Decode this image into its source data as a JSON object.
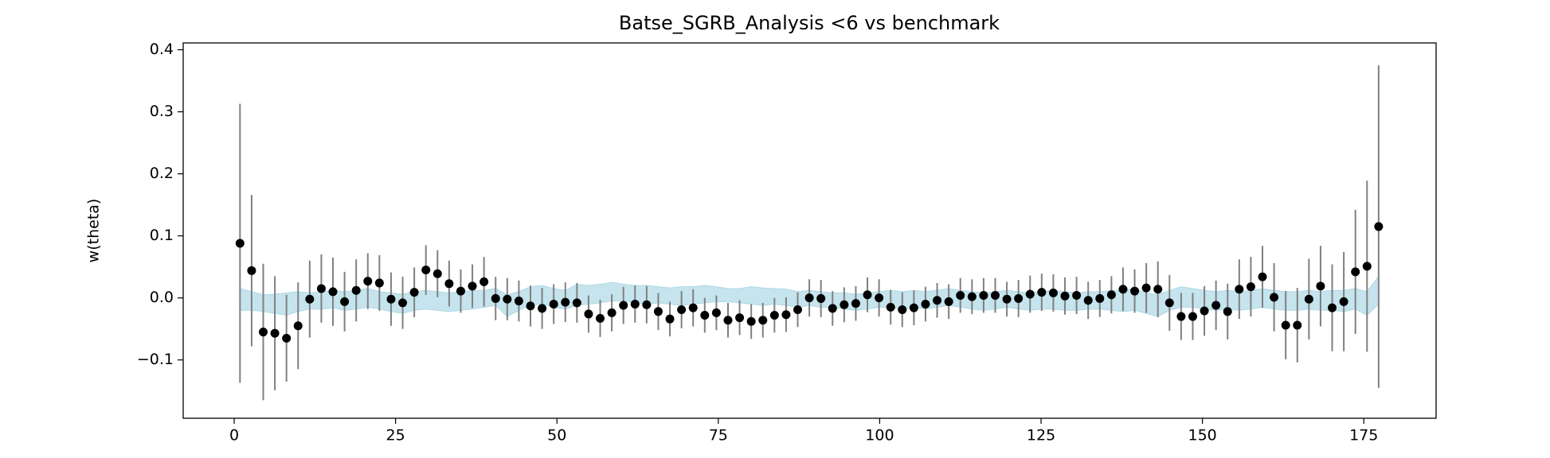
{
  "chart_data": {
    "type": "errorbar",
    "title": "Batse_SGRB_Analysis <6 vs benchmark",
    "ylabel": "w(theta)",
    "x": [
      0.9,
      2.7,
      4.5,
      6.3,
      8.1,
      9.9,
      11.7,
      13.5,
      15.3,
      17.1,
      18.9,
      20.7,
      22.5,
      24.3,
      26.1,
      27.9,
      29.7,
      31.5,
      33.3,
      35.1,
      36.9,
      38.7,
      40.5,
      42.3,
      44.1,
      45.9,
      47.7,
      49.5,
      51.3,
      53.1,
      54.9,
      56.7,
      58.5,
      60.3,
      62.1,
      63.9,
      65.7,
      67.5,
      69.3,
      71.1,
      72.9,
      74.7,
      76.5,
      78.3,
      80.1,
      81.9,
      83.7,
      85.5,
      87.3,
      89.1,
      90.9,
      92.7,
      94.5,
      96.3,
      98.1,
      99.9,
      101.7,
      103.5,
      105.3,
      107.1,
      108.9,
      110.7,
      112.5,
      114.3,
      116.1,
      117.9,
      119.7,
      121.5,
      123.3,
      125.1,
      126.9,
      128.7,
      130.5,
      132.3,
      134.1,
      135.9,
      137.7,
      139.5,
      141.3,
      143.1,
      144.9,
      146.7,
      148.5,
      150.3,
      152.1,
      153.9,
      155.7,
      157.5,
      159.3,
      161.1,
      162.9,
      164.7,
      166.5,
      168.3,
      170.1,
      171.9,
      173.7,
      175.5,
      177.3
    ],
    "values": [
      0.088,
      0.044,
      -0.055,
      -0.057,
      -0.065,
      -0.045,
      -0.002,
      0.015,
      0.01,
      -0.006,
      0.012,
      0.027,
      0.024,
      -0.002,
      -0.008,
      0.009,
      0.045,
      0.039,
      0.023,
      0.011,
      0.019,
      0.026,
      -0.001,
      -0.002,
      -0.005,
      -0.013,
      -0.017,
      -0.01,
      -0.007,
      -0.008,
      -0.026,
      -0.033,
      -0.024,
      -0.012,
      -0.01,
      -0.011,
      -0.022,
      -0.034,
      -0.019,
      -0.016,
      -0.028,
      -0.024,
      -0.036,
      -0.032,
      -0.038,
      -0.036,
      -0.028,
      -0.027,
      -0.019,
      0.0,
      -0.001,
      -0.017,
      -0.011,
      -0.009,
      0.005,
      0.0,
      -0.015,
      -0.019,
      -0.016,
      -0.01,
      -0.004,
      -0.006,
      0.004,
      0.002,
      0.004,
      0.004,
      -0.002,
      -0.001,
      0.006,
      0.009,
      0.008,
      0.003,
      0.004,
      -0.004,
      -0.001,
      0.005,
      0.014,
      0.011,
      0.016,
      0.014,
      -0.008,
      -0.03,
      -0.03,
      -0.021,
      -0.012,
      -0.022,
      0.014,
      0.018,
      0.034,
      0.001,
      -0.044,
      -0.044,
      -0.002,
      0.019,
      -0.016,
      -0.006,
      0.042,
      0.051,
      0.115
    ],
    "errors": [
      0.225,
      0.122,
      0.11,
      0.092,
      0.07,
      0.07,
      0.062,
      0.055,
      0.055,
      0.048,
      0.05,
      0.045,
      0.045,
      0.043,
      0.042,
      0.04,
      0.04,
      0.038,
      0.037,
      0.035,
      0.035,
      0.04,
      0.035,
      0.034,
      0.033,
      0.033,
      0.033,
      0.032,
      0.032,
      0.032,
      0.03,
      0.03,
      0.03,
      0.03,
      0.03,
      0.03,
      0.03,
      0.028,
      0.03,
      0.03,
      0.028,
      0.028,
      0.028,
      0.028,
      0.028,
      0.028,
      0.028,
      0.028,
      0.028,
      0.03,
      0.03,
      0.028,
      0.028,
      0.028,
      0.028,
      0.03,
      0.028,
      0.028,
      0.028,
      0.028,
      0.028,
      0.028,
      0.028,
      0.028,
      0.028,
      0.028,
      0.028,
      0.03,
      0.03,
      0.03,
      0.03,
      0.03,
      0.03,
      0.03,
      0.03,
      0.03,
      0.035,
      0.035,
      0.04,
      0.045,
      0.045,
      0.038,
      0.038,
      0.04,
      0.04,
      0.045,
      0.048,
      0.048,
      0.05,
      0.055,
      0.055,
      0.06,
      0.065,
      0.065,
      0.07,
      0.08,
      0.1,
      0.138,
      0.26
    ],
    "band_lower": [
      -0.02,
      -0.02,
      -0.022,
      -0.025,
      -0.028,
      -0.022,
      -0.018,
      -0.018,
      -0.016,
      -0.02,
      -0.018,
      -0.015,
      -0.018,
      -0.022,
      -0.025,
      -0.02,
      -0.018,
      -0.02,
      -0.022,
      -0.02,
      -0.018,
      -0.015,
      -0.012,
      -0.03,
      -0.02,
      -0.012,
      -0.01,
      -0.015,
      -0.018,
      -0.012,
      -0.01,
      -0.008,
      -0.005,
      -0.005,
      -0.008,
      -0.01,
      -0.008,
      -0.01,
      -0.012,
      -0.01,
      -0.008,
      -0.006,
      -0.006,
      -0.008,
      -0.01,
      -0.012,
      -0.01,
      -0.012,
      -0.015,
      -0.012,
      -0.015,
      -0.015,
      -0.018,
      -0.02,
      -0.018,
      -0.015,
      -0.015,
      -0.018,
      -0.015,
      -0.018,
      -0.015,
      -0.012,
      -0.015,
      -0.018,
      -0.02,
      -0.018,
      -0.015,
      -0.018,
      -0.02,
      -0.018,
      -0.018,
      -0.02,
      -0.02,
      -0.018,
      -0.018,
      -0.02,
      -0.022,
      -0.02,
      -0.025,
      -0.03,
      -0.02,
      -0.015,
      -0.015,
      -0.018,
      -0.02,
      -0.018,
      -0.02,
      -0.018,
      -0.015,
      -0.018,
      -0.02,
      -0.02,
      -0.018,
      -0.02,
      -0.02,
      -0.022,
      -0.018,
      -0.028,
      -0.01
    ],
    "band_upper": [
      0.015,
      0.01,
      0.005,
      0.006,
      0.008,
      0.01,
      0.008,
      0.01,
      0.012,
      0.01,
      0.012,
      0.015,
      0.01,
      0.008,
      0.006,
      0.01,
      0.012,
      0.01,
      0.008,
      0.01,
      0.012,
      0.012,
      0.015,
      0.005,
      0.01,
      0.018,
      0.02,
      0.015,
      0.012,
      0.022,
      0.02,
      0.022,
      0.025,
      0.022,
      0.02,
      0.02,
      0.018,
      0.016,
      0.018,
      0.018,
      0.02,
      0.018,
      0.015,
      0.015,
      0.018,
      0.016,
      0.015,
      0.014,
      0.01,
      0.012,
      0.01,
      0.008,
      0.008,
      0.006,
      0.008,
      0.01,
      0.012,
      0.01,
      0.012,
      0.01,
      0.012,
      0.015,
      0.012,
      0.01,
      0.008,
      0.01,
      0.012,
      0.01,
      0.008,
      0.01,
      0.012,
      0.01,
      0.008,
      0.01,
      0.01,
      0.012,
      0.012,
      0.015,
      0.008,
      0.005,
      0.012,
      0.018,
      0.015,
      0.012,
      0.01,
      0.012,
      0.01,
      0.012,
      0.015,
      0.012,
      0.01,
      0.01,
      0.012,
      0.01,
      0.012,
      0.012,
      0.015,
      0.01,
      0.035
    ],
    "color": "#000000",
    "error_color": "#808080",
    "band_color": "#add8e6",
    "xlim": [
      -7.9,
      186.2
    ],
    "xticks": [
      0,
      25,
      50,
      75,
      100,
      125,
      150,
      175
    ],
    "ylim": [
      -0.194,
      0.411
    ],
    "yticks": [
      {
        "value": -0.1,
        "label": "−0.1"
      },
      {
        "value": 0.0,
        "label": "0.0"
      },
      {
        "value": 0.1,
        "label": "0.1"
      },
      {
        "value": 0.2,
        "label": "0.2"
      },
      {
        "value": 0.3,
        "label": "0.3"
      },
      {
        "value": 0.4,
        "label": "0.4"
      }
    ]
  }
}
